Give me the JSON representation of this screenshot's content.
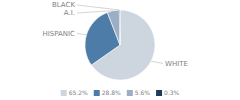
{
  "chart_data": {
    "type": "pie",
    "categories": [
      "WHITE",
      "HISPANIC",
      "A.I.",
      "BLACK"
    ],
    "values": [
      65.2,
      28.8,
      5.6,
      0.3
    ],
    "value_labels": [
      "65.2%",
      "28.8%",
      "5.6%",
      "0.3%"
    ],
    "colors": [
      "#cdd5de",
      "#4d7ca8",
      "#9aafc4",
      "#1f3a5f"
    ],
    "legend": "bottom"
  }
}
